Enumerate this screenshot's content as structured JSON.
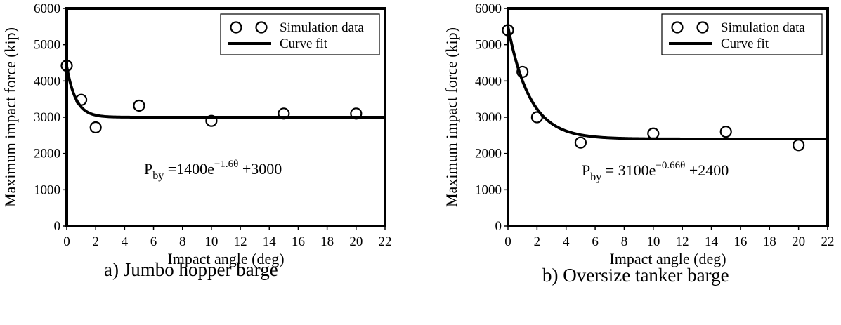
{
  "chart_data": [
    {
      "type": "scatter",
      "panel": "a",
      "caption": "a) Jumbo hopper barge",
      "xlabel": "Impact angle (deg)",
      "ylabel": "Maximum impact force (kip)",
      "xlim": [
        0,
        22
      ],
      "ylim": [
        0,
        6000
      ],
      "xticks": [
        0,
        2,
        4,
        6,
        8,
        10,
        12,
        14,
        16,
        18,
        20,
        22
      ],
      "yticks": [
        0,
        1000,
        2000,
        3000,
        4000,
        5000,
        6000
      ],
      "grid": false,
      "legend_position": "top-right",
      "series": [
        {
          "name": "Simulation data",
          "kind": "markers",
          "x": [
            0,
            1,
            2,
            5,
            10,
            15,
            20
          ],
          "y": [
            4420,
            3480,
            2720,
            3320,
            2900,
            3100,
            3100
          ]
        },
        {
          "name": "Curve fit",
          "kind": "line",
          "equation": {
            "A": 1400,
            "b": 1.6,
            "C": 3000
          }
        }
      ],
      "equation_label": {
        "lhs": "P",
        "sub": "by",
        "eq": " =1400e",
        "exp": "−1.6θ",
        "rest": " +3000"
      }
    },
    {
      "type": "scatter",
      "panel": "b",
      "caption": "b) Oversize tanker barge",
      "xlabel": "Impact angle (deg)",
      "ylabel": "Maximum impact force (kip)",
      "xlim": [
        0,
        22
      ],
      "ylim": [
        0,
        6000
      ],
      "xticks": [
        0,
        2,
        4,
        6,
        8,
        10,
        12,
        14,
        16,
        18,
        20,
        22
      ],
      "yticks": [
        0,
        1000,
        2000,
        3000,
        4000,
        5000,
        6000
      ],
      "grid": false,
      "legend_position": "top-right",
      "series": [
        {
          "name": "Simulation data",
          "kind": "markers",
          "x": [
            0,
            1,
            2,
            5,
            10,
            15,
            20
          ],
          "y": [
            5400,
            4250,
            3000,
            2300,
            2550,
            2600,
            2230
          ]
        },
        {
          "name": "Curve fit",
          "kind": "line",
          "equation": {
            "A": 3100,
            "b": 0.66,
            "C": 2400
          }
        }
      ],
      "equation_label": {
        "lhs": "P",
        "sub": "by",
        "eq": " = 3100e",
        "exp": "−0.66θ",
        "rest": " +2400"
      }
    }
  ]
}
